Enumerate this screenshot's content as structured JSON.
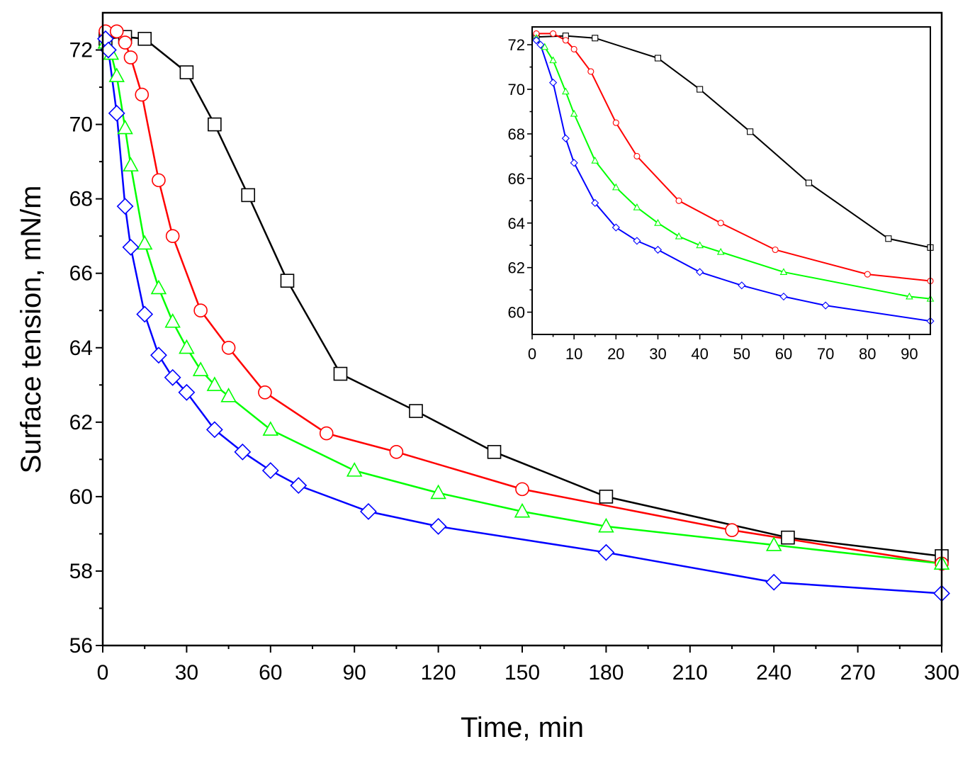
{
  "chart_data": [
    {
      "id": "main",
      "type": "line",
      "title": "",
      "xlabel": "Time, min",
      "ylabel": "Surface tension, mN/m",
      "xlim": [
        0,
        300
      ],
      "ylim": [
        56,
        73
      ],
      "xticks": [
        0,
        30,
        60,
        90,
        120,
        150,
        180,
        210,
        240,
        270,
        300
      ],
      "yticks": [
        56,
        58,
        60,
        62,
        64,
        66,
        68,
        70,
        72
      ],
      "xtick_labels": [
        "0",
        "30",
        "60",
        "90",
        "120",
        "150",
        "180",
        "210",
        "240",
        "270",
        "300"
      ],
      "ytick_labels": [
        "56",
        "58",
        "60",
        "62",
        "64",
        "66",
        "68",
        "70",
        "72"
      ],
      "grid": false,
      "legend": "none",
      "series": [
        {
          "name": "black-square",
          "color": "#000000",
          "marker": "square",
          "x": [
            1,
            8,
            15,
            30,
            40,
            52,
            66,
            85,
            112,
            140,
            180,
            245,
            300
          ],
          "y": [
            72.3,
            72.35,
            72.3,
            71.4,
            70.0,
            68.1,
            65.8,
            63.3,
            62.3,
            61.2,
            60.0,
            58.9,
            58.4
          ]
        },
        {
          "name": "red-circle",
          "color": "#ff0000",
          "marker": "circle",
          "x": [
            1,
            5,
            8,
            10,
            14,
            20,
            25,
            35,
            45,
            58,
            80,
            105,
            150,
            225,
            300
          ],
          "y": [
            72.5,
            72.5,
            72.2,
            71.8,
            70.8,
            68.5,
            67.0,
            65.0,
            64.0,
            62.8,
            61.7,
            61.2,
            60.2,
            59.1,
            58.2
          ]
        },
        {
          "name": "green-triangle",
          "color": "#00ff00",
          "marker": "triangle",
          "x": [
            1,
            3,
            5,
            8,
            10,
            15,
            20,
            25,
            30,
            35,
            40,
            45,
            60,
            90,
            120,
            150,
            180,
            240,
            300
          ],
          "y": [
            72.2,
            71.9,
            71.3,
            69.9,
            68.9,
            66.8,
            65.6,
            64.7,
            64.0,
            63.4,
            63.0,
            62.7,
            61.8,
            60.7,
            60.1,
            59.6,
            59.2,
            58.7,
            58.2
          ]
        },
        {
          "name": "blue-diamond",
          "color": "#0000ff",
          "marker": "diamond",
          "x": [
            1,
            2,
            5,
            8,
            10,
            15,
            20,
            25,
            30,
            40,
            50,
            60,
            70,
            95,
            120,
            180,
            240,
            300
          ],
          "y": [
            72.3,
            72.0,
            70.3,
            67.8,
            66.7,
            64.9,
            63.8,
            63.2,
            62.8,
            61.8,
            61.2,
            60.7,
            60.3,
            59.6,
            59.2,
            58.5,
            57.7,
            57.4
          ]
        }
      ]
    },
    {
      "id": "inset",
      "type": "line",
      "xlabel": "",
      "ylabel": "",
      "xlim": [
        0,
        95
      ],
      "ylim": [
        59,
        72.8
      ],
      "xticks": [
        0,
        10,
        20,
        30,
        40,
        50,
        60,
        70,
        80,
        90
      ],
      "yticks": [
        60,
        62,
        64,
        66,
        68,
        70,
        72
      ],
      "xtick_labels": [
        "0",
        "10",
        "20",
        "30",
        "40",
        "50",
        "60",
        "70",
        "80",
        "90"
      ],
      "ytick_labels": [
        "60",
        "62",
        "64",
        "66",
        "68",
        "70",
        "72"
      ],
      "grid": false,
      "legend": "none",
      "series": [
        {
          "name": "black-square",
          "color": "#000000",
          "marker": "square",
          "x": [
            1,
            8,
            15,
            30,
            40,
            52,
            66,
            85,
            95
          ],
          "y": [
            72.35,
            72.4,
            72.3,
            71.4,
            70.0,
            68.1,
            65.8,
            63.3,
            62.9
          ]
        },
        {
          "name": "red-circle",
          "color": "#ff0000",
          "marker": "circle",
          "x": [
            1,
            5,
            8,
            10,
            14,
            20,
            25,
            35,
            45,
            58,
            80,
            95
          ],
          "y": [
            72.5,
            72.5,
            72.2,
            71.8,
            70.8,
            68.5,
            67.0,
            65.0,
            64.0,
            62.8,
            61.7,
            61.4
          ]
        },
        {
          "name": "green-triangle",
          "color": "#00ff00",
          "marker": "triangle",
          "x": [
            1,
            3,
            5,
            8,
            10,
            15,
            20,
            25,
            30,
            35,
            40,
            45,
            60,
            90,
            95
          ],
          "y": [
            72.3,
            71.9,
            71.3,
            69.9,
            68.9,
            66.8,
            65.6,
            64.7,
            64.0,
            63.4,
            63.0,
            62.7,
            61.8,
            60.7,
            60.6
          ]
        },
        {
          "name": "blue-diamond",
          "color": "#0000ff",
          "marker": "diamond",
          "x": [
            1,
            2,
            5,
            8,
            10,
            15,
            20,
            25,
            30,
            40,
            50,
            60,
            70,
            95
          ],
          "y": [
            72.2,
            72.0,
            70.3,
            67.8,
            66.7,
            64.9,
            63.8,
            63.2,
            62.8,
            61.8,
            61.2,
            60.7,
            60.3,
            59.6
          ]
        }
      ]
    }
  ]
}
